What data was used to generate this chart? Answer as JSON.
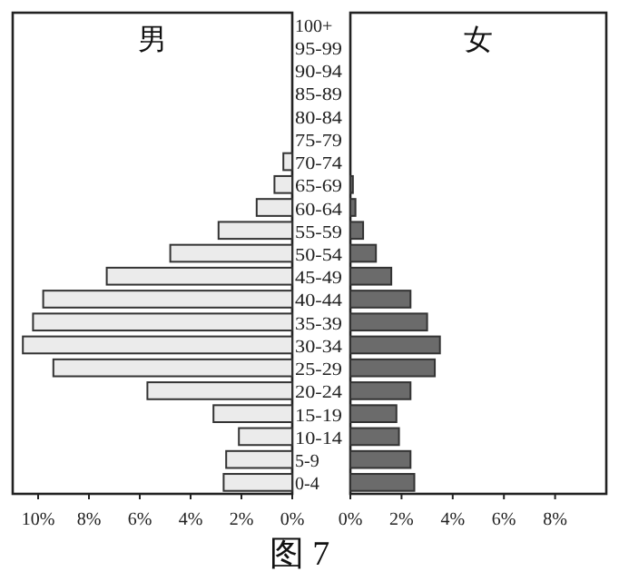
{
  "chart_data": [
    {
      "type": "bar",
      "orientation": "horizontal",
      "title": "男",
      "categories": [
        "100+",
        "95-99",
        "90-94",
        "85-89",
        "80-84",
        "75-79",
        "70-74",
        "65-69",
        "60-64",
        "55-59",
        "50-54",
        "45-49",
        "40-44",
        "35-39",
        "30-34",
        "25-29",
        "20-24",
        "15-19",
        "10-14",
        "5-9",
        "0-4"
      ],
      "series": [
        {
          "color": "#ebebeb",
          "values": [
            0,
            0,
            0,
            0,
            0,
            0,
            0.35,
            0.7,
            1.4,
            2.9,
            4.8,
            7.3,
            9.8,
            10.2,
            10.6,
            9.4,
            5.7,
            3.1,
            2.1,
            2.6,
            2.7
          ]
        }
      ],
      "xlim": [
        11,
        0
      ],
      "xticks": [
        {
          "value": 10,
          "label": "10%"
        },
        {
          "value": 8,
          "label": "8%"
        },
        {
          "value": 6,
          "label": "6%"
        },
        {
          "value": 4,
          "label": "4%"
        },
        {
          "value": 2,
          "label": "2%"
        },
        {
          "value": 0,
          "label": "0%"
        }
      ],
      "annotations": [
        "图 7"
      ]
    },
    {
      "type": "bar",
      "orientation": "horizontal",
      "title": "女",
      "tick_labels": "x",
      "categories": [
        "100+",
        "95-99",
        "90-94",
        "85-89",
        "80-84",
        "75-79",
        "70-74",
        "65-69",
        "60-64",
        "55-59",
        "50-54",
        "45-49",
        "40-44",
        "35-39",
        "30-34",
        "25-29",
        "20-24",
        "15-19",
        "10-14",
        "5-9",
        "0-4"
      ],
      "series": [
        {
          "color": "#6b6b6b",
          "values": [
            0,
            0,
            0,
            0,
            0,
            0,
            0,
            0.1,
            0.2,
            0.5,
            1.0,
            1.6,
            2.35,
            3.0,
            3.5,
            3.3,
            2.35,
            1.8,
            1.9,
            2.35,
            2.5
          ]
        }
      ],
      "xlim": [
        0,
        10
      ],
      "xticks": [
        {
          "value": 0,
          "label": "0%"
        },
        {
          "value": 2,
          "label": "2%"
        },
        {
          "value": 4,
          "label": "4%"
        },
        {
          "value": 6,
          "label": "6%"
        },
        {
          "value": 8,
          "label": "8%"
        }
      ]
    }
  ]
}
